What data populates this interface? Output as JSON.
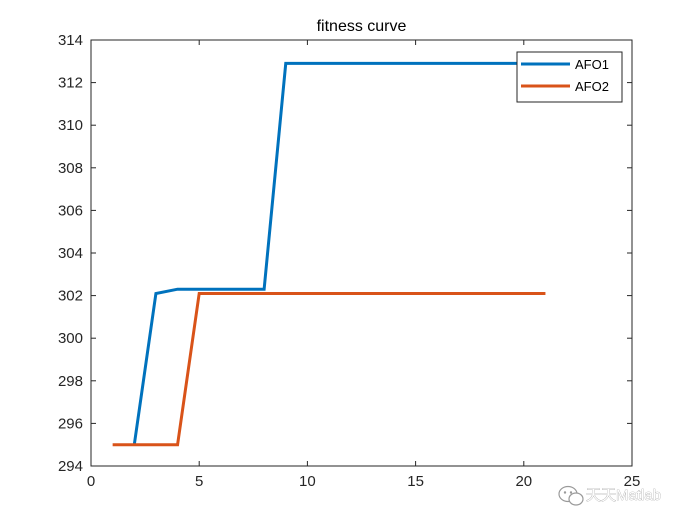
{
  "chart_data": {
    "type": "line",
    "title": "fitness curve",
    "xlabel": "",
    "ylabel": "",
    "xlim": [
      0,
      25
    ],
    "ylim": [
      294,
      314
    ],
    "xticks": [
      0,
      5,
      10,
      15,
      20,
      25
    ],
    "yticks": [
      294,
      296,
      298,
      300,
      302,
      304,
      306,
      308,
      310,
      312,
      314
    ],
    "grid": false,
    "legend_position": "top-right",
    "series": [
      {
        "name": "AFO1",
        "color": "#0072BD",
        "x": [
          2,
          3,
          4,
          5,
          6,
          7,
          8,
          9,
          10,
          11,
          12,
          13,
          14,
          15,
          16,
          17,
          18,
          19,
          20,
          21
        ],
        "y": [
          295.0,
          302.1,
          302.3,
          302.3,
          302.3,
          302.3,
          302.3,
          312.9,
          312.9,
          312.9,
          312.9,
          312.9,
          312.9,
          312.9,
          312.9,
          312.9,
          312.9,
          312.9,
          312.9,
          312.9
        ]
      },
      {
        "name": "AFO2",
        "color": "#D95319",
        "x": [
          1,
          2,
          3,
          4,
          5,
          6,
          7,
          8,
          9,
          10,
          11,
          12,
          13,
          14,
          15,
          16,
          17,
          18,
          19,
          20,
          21
        ],
        "y": [
          295.0,
          295.0,
          295.0,
          295.0,
          302.1,
          302.1,
          302.1,
          302.1,
          302.1,
          302.1,
          302.1,
          302.1,
          302.1,
          302.1,
          302.1,
          302.1,
          302.1,
          302.1,
          302.1,
          302.1,
          302.1
        ]
      }
    ]
  },
  "watermark": {
    "text": "天天Matlab",
    "icon": "wechat-icon"
  }
}
